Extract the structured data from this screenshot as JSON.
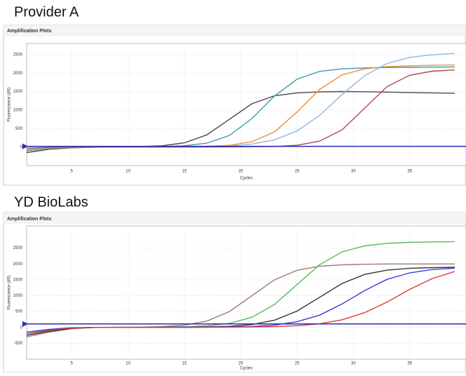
{
  "chart_data": [
    {
      "type": "line",
      "title": "Provider A",
      "panel_title": "Amplification Plots",
      "x_label": "Cycles",
      "y_label": "Fluorescence (dR)",
      "x": [
        1,
        3,
        5,
        7,
        9,
        11,
        13,
        15,
        17,
        19,
        21,
        23,
        25,
        27,
        29,
        31,
        33,
        35,
        37,
        39
      ],
      "xlim": [
        1,
        40
      ],
      "xticks": [
        5,
        10,
        15,
        20,
        25,
        30,
        35
      ],
      "ylim": [
        -500,
        2800
      ],
      "yticks": [
        0,
        500,
        1000,
        1500,
        2000,
        2500
      ],
      "grid": true,
      "threshold": 20,
      "threshold_color": "#2b2bb5",
      "series": [
        {
          "color": "#4a4a4a",
          "values": [
            -150,
            -60,
            -20,
            -5,
            0,
            10,
            35,
            115,
            330,
            750,
            1170,
            1385,
            1465,
            1490,
            1500,
            1495,
            1485,
            1475,
            1465,
            1455
          ]
        },
        {
          "color": "#3a9bb0",
          "values": [
            -100,
            -40,
            -10,
            0,
            0,
            5,
            10,
            35,
            105,
            315,
            770,
            1380,
            1835,
            2045,
            2115,
            2140,
            2150,
            2155,
            2160,
            2165
          ]
        },
        {
          "color": "#e8913a",
          "values": [
            -80,
            -30,
            -5,
            0,
            0,
            0,
            0,
            5,
            20,
            47,
            145,
            410,
            945,
            1555,
            1950,
            2115,
            2175,
            2195,
            2210,
            2220
          ]
        },
        {
          "color": "#8fb8e0",
          "values": [
            -60,
            -20,
            0,
            0,
            0,
            0,
            0,
            5,
            15,
            30,
            80,
            195,
            435,
            855,
            1420,
            1930,
            2260,
            2425,
            2495,
            2530
          ]
        },
        {
          "color": "#a0504a",
          "values": [
            -30,
            -10,
            0,
            0,
            0,
            0,
            0,
            0,
            0,
            5,
            10,
            15,
            48,
            160,
            465,
            1050,
            1635,
            1940,
            2050,
            2085
          ]
        }
      ]
    },
    {
      "type": "line",
      "title": "YD BioLabs",
      "panel_title": "Amplification Plots",
      "x_label": "Cycles",
      "y_label": "Fluorescence (dR)",
      "x": [
        1,
        3,
        5,
        7,
        9,
        11,
        13,
        15,
        17,
        19,
        21,
        23,
        25,
        27,
        29,
        31,
        33,
        35,
        37,
        39
      ],
      "xlim": [
        1,
        40
      ],
      "xticks": [
        5,
        10,
        15,
        20,
        25,
        30,
        35
      ],
      "ylim": [
        -1000,
        3200
      ],
      "yticks": [
        -500,
        0,
        500,
        1000,
        1500,
        2000,
        2500
      ],
      "grid": true,
      "threshold": 110,
      "threshold_color": "#2b2bb5",
      "series": [
        {
          "color": "#a07a7a",
          "values": [
            -300,
            -150,
            -40,
            0,
            5,
            10,
            25,
            70,
            200,
            500,
            1000,
            1500,
            1800,
            1930,
            1970,
            1990,
            2000,
            2000,
            2000,
            2000
          ]
        },
        {
          "color": "#5cb85c",
          "values": [
            -200,
            -100,
            -20,
            0,
            0,
            5,
            10,
            20,
            50,
            130,
            320,
            725,
            1350,
            1975,
            2380,
            2570,
            2650,
            2680,
            2695,
            2700
          ]
        },
        {
          "color": "#333333",
          "values": [
            -250,
            -120,
            -30,
            0,
            0,
            0,
            5,
            10,
            20,
            35,
            90,
            230,
            515,
            950,
            1385,
            1670,
            1805,
            1865,
            1885,
            1895
          ]
        },
        {
          "color": "#3a3ae0",
          "values": [
            -150,
            -60,
            -10,
            0,
            0,
            0,
            0,
            5,
            10,
            20,
            30,
            75,
            180,
            385,
            740,
            1160,
            1515,
            1720,
            1825,
            1870
          ]
        },
        {
          "color": "#e03a3a",
          "values": [
            -200,
            -80,
            -20,
            0,
            0,
            0,
            0,
            0,
            5,
            10,
            15,
            25,
            55,
            115,
            240,
            465,
            800,
            1200,
            1540,
            1760
          ]
        }
      ]
    }
  ]
}
